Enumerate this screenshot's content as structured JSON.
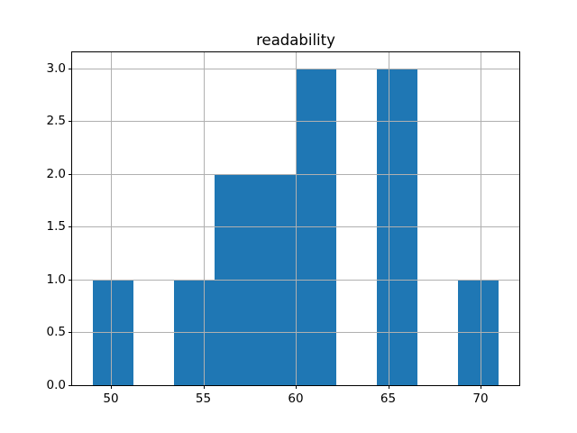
{
  "chart_data": {
    "type": "bar",
    "subtype": "histogram",
    "title": "readability",
    "xlabel": "",
    "ylabel": "",
    "bin_edges": [
      49.0,
      51.2,
      53.4,
      55.6,
      57.8,
      60.0,
      62.2,
      64.4,
      66.6,
      68.8,
      71.0
    ],
    "counts": [
      1,
      0,
      1,
      2,
      2,
      3,
      0,
      3,
      0,
      1
    ],
    "xlim": [
      47.9,
      72.1
    ],
    "ylim": [
      0,
      3.15
    ],
    "x_ticks": [
      50,
      55,
      60,
      65,
      70
    ],
    "x_tick_labels": [
      "50",
      "55",
      "60",
      "65",
      "70"
    ],
    "y_ticks": [
      0.0,
      0.5,
      1.0,
      1.5,
      2.0,
      2.5,
      3.0
    ],
    "y_tick_labels": [
      "0.0",
      "0.5",
      "1.0",
      "1.5",
      "2.0",
      "2.5",
      "3.0"
    ],
    "grid": true,
    "legend": null,
    "colors": {
      "bar": "#1f77b4",
      "grid": "#b0b0b0",
      "spine": "#000000",
      "text": "#000000",
      "background": "#ffffff"
    }
  }
}
